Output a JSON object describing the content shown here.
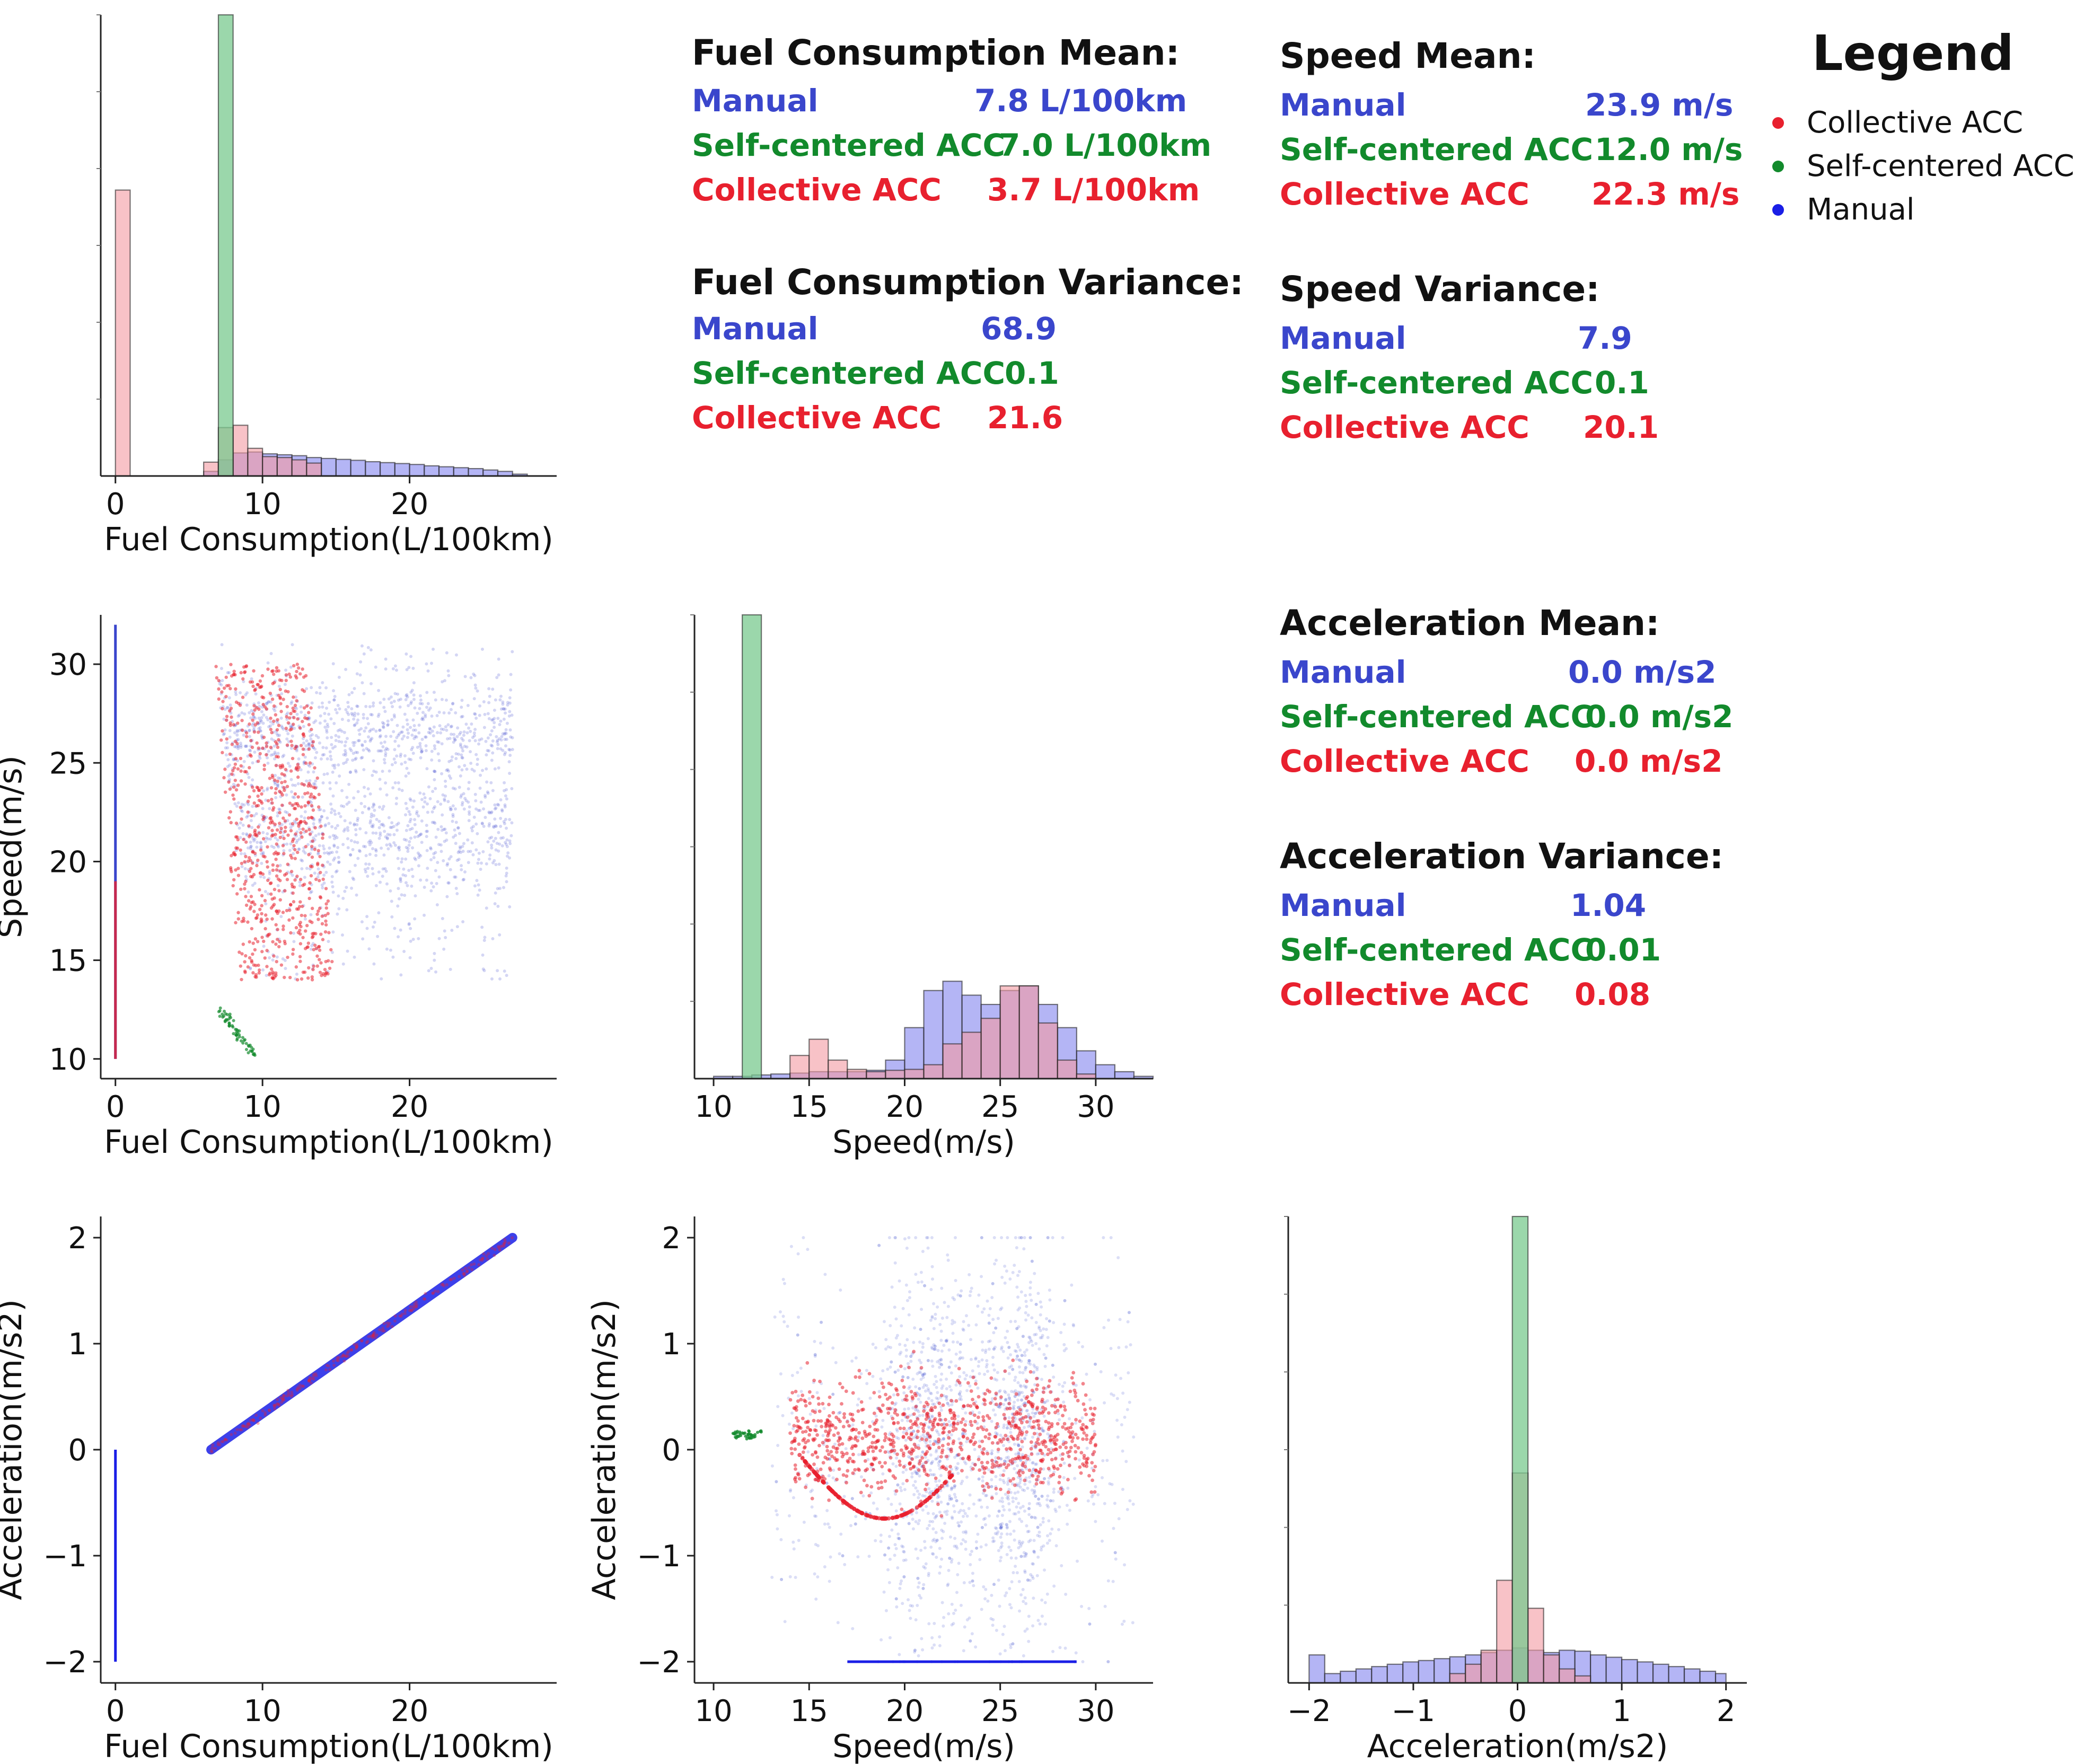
{
  "colors": {
    "manual": "#3a46cc",
    "self_centered": "#128a2c",
    "collective": "#e8202e",
    "manual_fill": "#8c8ef0",
    "self_fill": "#79c98f",
    "collective_fill": "#f39aa2",
    "overlap_fill": "#c0427a"
  },
  "legend": {
    "title": "Legend",
    "entries": [
      {
        "label": "Collective ACC",
        "color": "#e8202e"
      },
      {
        "label": "Self-centered ACC",
        "color": "#128a2c"
      },
      {
        "label": "Manual",
        "color": "#1a1ee6"
      }
    ]
  },
  "stats": {
    "fuel_mean": {
      "title": "Fuel Consumption Mean:",
      "rows": [
        {
          "name": "Manual",
          "value": "7.8 L/100km"
        },
        {
          "name": "Self-centered ACC",
          "value": "7.0 L/100km"
        },
        {
          "name": "Collective ACC",
          "value": "3.7 L/100km"
        }
      ]
    },
    "fuel_variance": {
      "title": "Fuel Consumption Variance:",
      "rows": [
        {
          "name": "Manual",
          "value": "68.9"
        },
        {
          "name": "Self-centered ACC",
          "value": "0.1"
        },
        {
          "name": "Collective ACC",
          "value": "21.6"
        }
      ]
    },
    "speed_mean": {
      "title": "Speed Mean:",
      "rows": [
        {
          "name": "Manual",
          "value": "23.9 m/s"
        },
        {
          "name": "Self-centered ACC",
          "value": "12.0 m/s"
        },
        {
          "name": "Collective ACC",
          "value": "22.3 m/s"
        }
      ]
    },
    "speed_variance": {
      "title": "Speed Variance:",
      "rows": [
        {
          "name": "Manual",
          "value": "7.9"
        },
        {
          "name": "Self-centered ACC",
          "value": "0.1"
        },
        {
          "name": "Collective ACC",
          "value": "20.1"
        }
      ]
    },
    "accel_mean": {
      "title": "Acceleration Mean:",
      "rows": [
        {
          "name": "Manual",
          "value": "0.0 m/s2"
        },
        {
          "name": "Self-centered ACC",
          "value": "0.0 m/s2"
        },
        {
          "name": "Collective ACC",
          "value": "0.0 m/s2"
        }
      ]
    },
    "accel_variance": {
      "title": "Acceleration Variance:",
      "rows": [
        {
          "name": "Manual",
          "value": "1.04"
        },
        {
          "name": "Self-centered ACC",
          "value": "0.01"
        },
        {
          "name": "Collective ACC",
          "value": "0.08"
        }
      ]
    }
  },
  "chart_data": [
    {
      "id": "fuel_hist",
      "type": "bar",
      "xlabel": "Fuel Consumption(L/100km)",
      "ylabel": "",
      "xlim": [
        -1,
        30
      ],
      "ylim": [
        0,
        1
      ],
      "xticks": [
        0,
        10,
        20
      ],
      "grid": false,
      "series": [
        {
          "key": "manual",
          "bins": [
            [
              6,
              7,
              0.01
            ],
            [
              7,
              8,
              0.035
            ],
            [
              8,
              9,
              0.05
            ],
            [
              9,
              10,
              0.052
            ],
            [
              10,
              11,
              0.048
            ],
            [
              11,
              12,
              0.046
            ],
            [
              12,
              13,
              0.044
            ],
            [
              13,
              14,
              0.04
            ],
            [
              14,
              15,
              0.038
            ],
            [
              15,
              16,
              0.036
            ],
            [
              16,
              17,
              0.034
            ],
            [
              17,
              18,
              0.031
            ],
            [
              18,
              19,
              0.029
            ],
            [
              19,
              20,
              0.027
            ],
            [
              20,
              21,
              0.025
            ],
            [
              21,
              22,
              0.022
            ],
            [
              22,
              23,
              0.02
            ],
            [
              23,
              24,
              0.018
            ],
            [
              24,
              25,
              0.016
            ],
            [
              25,
              26,
              0.013
            ],
            [
              26,
              27,
              0.01
            ],
            [
              27,
              28,
              0.004
            ]
          ]
        },
        {
          "key": "collective",
          "bins": [
            [
              0,
              1,
              0.62
            ],
            [
              6,
              7,
              0.03
            ],
            [
              7,
              8,
              0.105
            ],
            [
              8,
              9,
              0.11
            ],
            [
              9,
              10,
              0.06
            ],
            [
              10,
              11,
              0.042
            ],
            [
              11,
              12,
              0.04
            ],
            [
              12,
              13,
              0.035
            ],
            [
              13,
              14,
              0.028
            ]
          ]
        },
        {
          "key": "self",
          "bins": [
            [
              7,
              8,
              1.0
            ]
          ]
        }
      ]
    },
    {
      "id": "speed_hist",
      "type": "bar",
      "xlabel": "Speed(m/s)",
      "ylabel": "",
      "xlim": [
        9,
        33
      ],
      "ylim": [
        0,
        1
      ],
      "xticks": [
        10,
        15,
        20,
        25,
        30
      ],
      "grid": false,
      "series": [
        {
          "key": "manual",
          "bins": [
            [
              10,
              11,
              0.005
            ],
            [
              11,
              12,
              0.005
            ],
            [
              12,
              13,
              0.008
            ],
            [
              13,
              14,
              0.01
            ],
            [
              14,
              15,
              0.012
            ],
            [
              15,
              16,
              0.015
            ],
            [
              16,
              17,
              0.015
            ],
            [
              17,
              18,
              0.015
            ],
            [
              18,
              19,
              0.018
            ],
            [
              19,
              20,
              0.04
            ],
            [
              20,
              21,
              0.11
            ],
            [
              21,
              22,
              0.19
            ],
            [
              22,
              23,
              0.21
            ],
            [
              23,
              24,
              0.18
            ],
            [
              24,
              25,
              0.16
            ],
            [
              25,
              26,
              0.19
            ],
            [
              26,
              27,
              0.2
            ],
            [
              27,
              28,
              0.16
            ],
            [
              28,
              29,
              0.11
            ],
            [
              29,
              30,
              0.06
            ],
            [
              30,
              31,
              0.03
            ],
            [
              31,
              32,
              0.015
            ],
            [
              32,
              33,
              0.005
            ]
          ]
        },
        {
          "key": "collective",
          "bins": [
            [
              14,
              15,
              0.05
            ],
            [
              15,
              16,
              0.085
            ],
            [
              16,
              17,
              0.04
            ],
            [
              17,
              18,
              0.02
            ],
            [
              18,
              19,
              0.015
            ],
            [
              19,
              20,
              0.018
            ],
            [
              20,
              21,
              0.02
            ],
            [
              21,
              22,
              0.03
            ],
            [
              22,
              23,
              0.075
            ],
            [
              23,
              24,
              0.1
            ],
            [
              24,
              25,
              0.13
            ],
            [
              25,
              26,
              0.2
            ],
            [
              26,
              27,
              0.2
            ],
            [
              27,
              28,
              0.12
            ],
            [
              28,
              29,
              0.04
            ],
            [
              29,
              30,
              0.01
            ]
          ]
        },
        {
          "key": "self",
          "bins": [
            [
              11.5,
              12.5,
              1.0
            ]
          ]
        }
      ]
    },
    {
      "id": "accel_hist",
      "type": "bar",
      "xlabel": "Acceleration(m/s2)",
      "ylabel": "",
      "xlim": [
        -2.2,
        2.2
      ],
      "ylim": [
        0,
        1
      ],
      "xticks": [
        -2,
        -1,
        0,
        1,
        2
      ],
      "xtick_labels": [
        "−2",
        "−1",
        "0",
        "1",
        "2"
      ],
      "grid": false,
      "series": [
        {
          "key": "manual",
          "bins": [
            [
              -2.0,
              -1.85,
              0.06
            ],
            [
              -1.85,
              -1.7,
              0.02
            ],
            [
              -1.7,
              -1.55,
              0.025
            ],
            [
              -1.55,
              -1.4,
              0.03
            ],
            [
              -1.4,
              -1.25,
              0.035
            ],
            [
              -1.25,
              -1.1,
              0.04
            ],
            [
              -1.1,
              -0.95,
              0.045
            ],
            [
              -0.95,
              -0.8,
              0.048
            ],
            [
              -0.8,
              -0.65,
              0.052
            ],
            [
              -0.65,
              -0.5,
              0.056
            ],
            [
              -0.5,
              -0.35,
              0.06
            ],
            [
              -0.35,
              -0.2,
              0.065
            ],
            [
              -0.2,
              -0.05,
              0.07
            ],
            [
              -0.05,
              0.1,
              0.075
            ],
            [
              0.1,
              0.25,
              0.07
            ],
            [
              0.25,
              0.4,
              0.065
            ],
            [
              0.4,
              0.55,
              0.07
            ],
            [
              0.55,
              0.7,
              0.068
            ],
            [
              0.7,
              0.85,
              0.06
            ],
            [
              0.85,
              1.0,
              0.055
            ],
            [
              1.0,
              1.15,
              0.05
            ],
            [
              1.15,
              1.3,
              0.045
            ],
            [
              1.3,
              1.45,
              0.04
            ],
            [
              1.45,
              1.6,
              0.035
            ],
            [
              1.6,
              1.75,
              0.03
            ],
            [
              1.75,
              1.9,
              0.025
            ],
            [
              1.9,
              2.0,
              0.02
            ]
          ]
        },
        {
          "key": "collective",
          "bins": [
            [
              -0.65,
              -0.5,
              0.02
            ],
            [
              -0.5,
              -0.35,
              0.04
            ],
            [
              -0.35,
              -0.2,
              0.07
            ],
            [
              -0.2,
              -0.05,
              0.22
            ],
            [
              -0.05,
              0.1,
              0.45
            ],
            [
              0.1,
              0.25,
              0.16
            ],
            [
              0.25,
              0.4,
              0.06
            ],
            [
              0.4,
              0.55,
              0.03
            ],
            [
              0.55,
              0.7,
              0.015
            ]
          ]
        },
        {
          "key": "self",
          "bins": [
            [
              -0.05,
              0.1,
              1.0
            ]
          ]
        }
      ]
    },
    {
      "id": "fuel_speed_scatter",
      "type": "scatter",
      "xlabel": "Fuel Consumption(L/100km)",
      "ylabel": "Speed(m/s)",
      "xlim": [
        -1,
        30
      ],
      "ylim": [
        9,
        32.5
      ],
      "xticks": [
        0,
        10,
        20
      ],
      "yticks": [
        10,
        15,
        20,
        25,
        30
      ],
      "grid": false
    },
    {
      "id": "fuel_accel_scatter",
      "type": "scatter",
      "xlabel": "Fuel Consumption(L/100km)",
      "ylabel": "Acceleration(m/s2)",
      "xlim": [
        -1,
        30
      ],
      "ylim": [
        -2.2,
        2.2
      ],
      "xticks": [
        0,
        10,
        20
      ],
      "yticks": [
        -2,
        -1,
        0,
        1,
        2
      ],
      "ytick_labels": [
        "−2",
        "−1",
        "0",
        "1",
        "2"
      ],
      "grid": false
    },
    {
      "id": "speed_accel_scatter",
      "type": "scatter",
      "xlabel": "Speed(m/s)",
      "ylabel": "Acceleration(m/s2)",
      "xlim": [
        9,
        33
      ],
      "ylim": [
        -2.2,
        2.2
      ],
      "xticks": [
        10,
        15,
        20,
        25,
        30
      ],
      "yticks": [
        -2,
        -1,
        0,
        1,
        2
      ],
      "ytick_labels": [
        "−2",
        "−1",
        "0",
        "1",
        "2"
      ],
      "grid": false
    }
  ]
}
